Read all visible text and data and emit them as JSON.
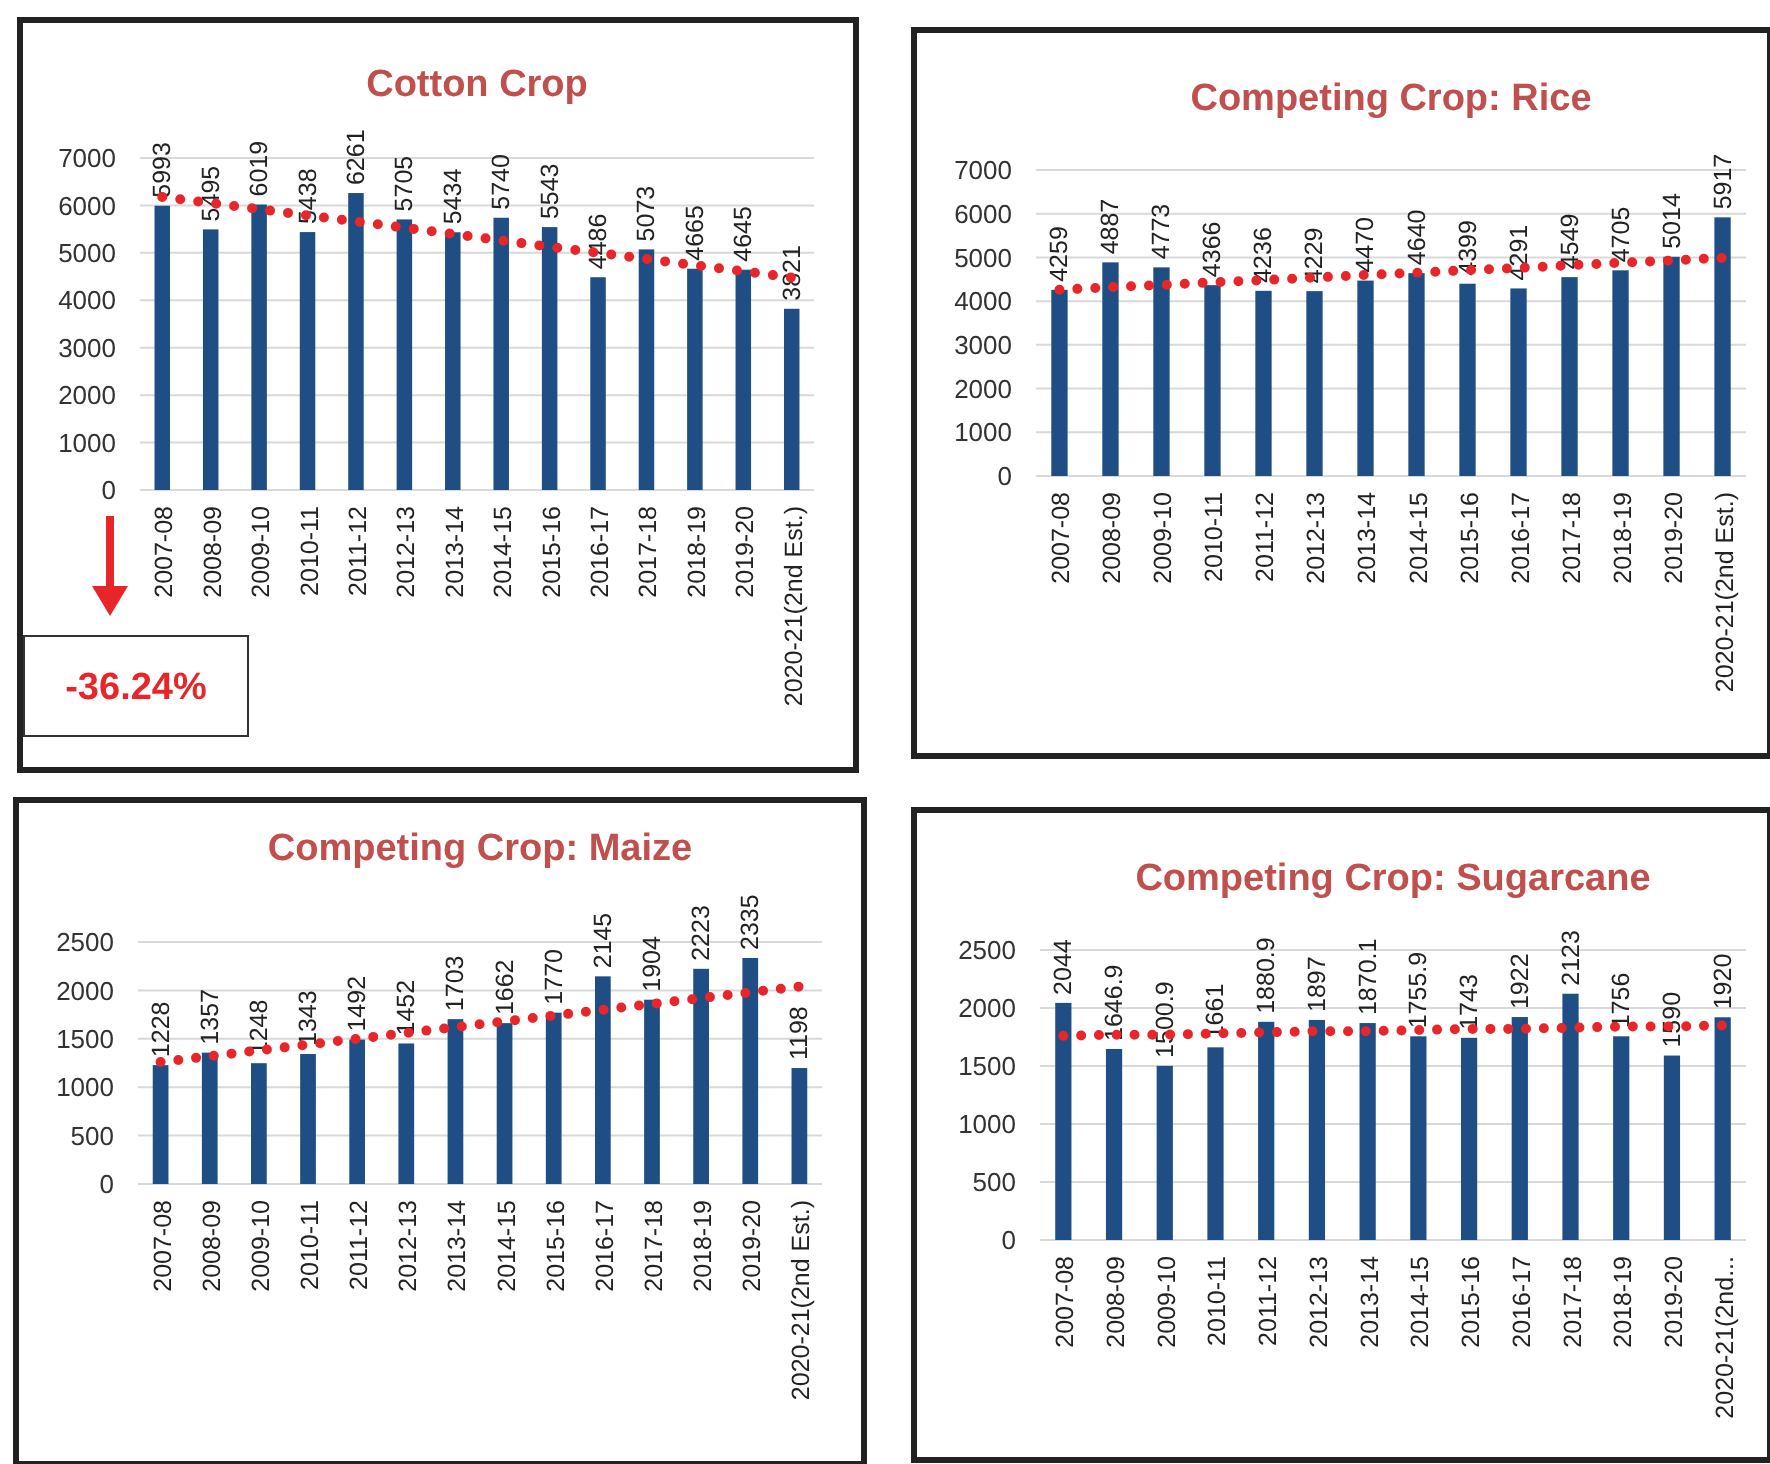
{
  "chart_data": [
    {
      "type": "bar",
      "title": "Cotton Crop",
      "categories": [
        "2007-08",
        "2008-09",
        "2009-10",
        "2010-11",
        "2011-12",
        "2012-13",
        "2013-14",
        "2014-15",
        "2015-16",
        "2016-17",
        "2017-18",
        "2018-19",
        "2019-20",
        "2020-21(2nd Est.)"
      ],
      "series": [
        {
          "color": "#1f4e84",
          "values": [
            5993,
            5495,
            6019,
            5438,
            6261,
            5705,
            5434,
            5740,
            5543,
            4486,
            5073,
            4665,
            4645,
            3821
          ],
          "value_labels": [
            "5993",
            "5495",
            "6019",
            "5438",
            "6261",
            "5705",
            "5434",
            "5740",
            "5543",
            "4486",
            "5073",
            "4665",
            "4645",
            "3821"
          ]
        },
        {
          "type": "line",
          "color": "#e8262a",
          "line_style": "dotted",
          "values": [
            6180,
            6050,
            5920,
            5790,
            5660,
            5530,
            5400,
            5260,
            5130,
            5000,
            4870,
            4740,
            4610,
            4480
          ]
        }
      ],
      "ylim": [
        0,
        7000
      ],
      "yticks": [
        0,
        1000,
        2000,
        3000,
        4000,
        5000,
        6000,
        7000
      ],
      "grid": "y",
      "annotations": [
        "-36.24%"
      ]
    },
    {
      "type": "bar",
      "title": "Competing Crop: Rice",
      "categories": [
        "2007-08",
        "2008-09",
        "2009-10",
        "2010-11",
        "2011-12",
        "2012-13",
        "2013-14",
        "2014-15",
        "2015-16",
        "2016-17",
        "2017-18",
        "2018-19",
        "2019-20",
        "2020-21(2nd Est.)"
      ],
      "series": [
        {
          "color": "#1f4e84",
          "values": [
            4259,
            4887,
            4773,
            4366,
            4236,
            4229,
            4470,
            4640,
            4399,
            4291,
            4549,
            4705,
            5014,
            5917
          ],
          "value_labels": [
            "4259",
            "4887",
            "4773",
            "4366",
            "4236",
            "4229",
            "4470",
            "4640",
            "4399",
            "4291",
            "4549",
            "4705",
            "5014",
            "5917"
          ]
        },
        {
          "type": "line",
          "color": "#e8262a",
          "line_style": "dotted",
          "values": [
            4260,
            4320,
            4370,
            4430,
            4480,
            4540,
            4600,
            4650,
            4710,
            4760,
            4820,
            4880,
            4930,
            4990
          ]
        }
      ],
      "ylim": [
        0,
        7000
      ],
      "yticks": [
        0,
        1000,
        2000,
        3000,
        4000,
        5000,
        6000,
        7000
      ],
      "grid": "y"
    },
    {
      "type": "bar",
      "title": "Competing Crop: Maize",
      "categories": [
        "2007-08",
        "2008-09",
        "2009-10",
        "2010-11",
        "2011-12",
        "2012-13",
        "2013-14",
        "2014-15",
        "2015-16",
        "2016-17",
        "2017-18",
        "2018-19",
        "2019-20",
        "2020-21(2nd Est.)"
      ],
      "series": [
        {
          "color": "#1f4e84",
          "values": [
            1228,
            1357,
            1248,
            1343,
            1492,
            1452,
            1703,
            1662,
            1770,
            2145,
            1904,
            2223,
            2335,
            1198
          ],
          "value_labels": [
            "1228",
            "1357",
            "1248",
            "1343",
            "1492",
            "1452",
            "1703",
            "1662",
            "1770",
            "2145",
            "1904",
            "2223",
            "2335",
            "1198"
          ]
        },
        {
          "type": "line",
          "color": "#e8262a",
          "line_style": "dotted",
          "values": [
            1260,
            1320,
            1380,
            1440,
            1500,
            1560,
            1620,
            1680,
            1740,
            1800,
            1860,
            1920,
            1980,
            2040
          ]
        }
      ],
      "ylim": [
        0,
        2500
      ],
      "yticks": [
        0,
        500,
        1000,
        1500,
        2000,
        2500
      ],
      "grid": "y"
    },
    {
      "type": "bar",
      "title": "Competing Crop: Sugarcane",
      "categories": [
        "2007-08",
        "2008-09",
        "2009-10",
        "2010-11",
        "2011-12",
        "2012-13",
        "2013-14",
        "2014-15",
        "2015-16",
        "2016-17",
        "2017-18",
        "2018-19",
        "2019-20",
        "2020-21(2nd..."
      ],
      "series": [
        {
          "color": "#1f4e84",
          "values": [
            2044,
            1646.9,
            1500.9,
            1661,
            1880.9,
            1897,
            1870.1,
            1755.9,
            1743,
            1922,
            2123,
            1756,
            1590,
            1920
          ],
          "value_labels": [
            "2044",
            "1646.9",
            "1500.9",
            "1661",
            "1880.9",
            "1897",
            "1870.1",
            "1755.9",
            "1743",
            "1922",
            "2123",
            "1756",
            "1590",
            "1920"
          ]
        },
        {
          "type": "line",
          "color": "#e8262a",
          "line_style": "dotted",
          "values": [
            1760,
            1770,
            1770,
            1780,
            1790,
            1800,
            1800,
            1810,
            1820,
            1820,
            1830,
            1840,
            1840,
            1850
          ]
        }
      ],
      "ylim": [
        0,
        2500
      ],
      "yticks": [
        0,
        500,
        1000,
        1500,
        2000,
        2500
      ],
      "grid": "y"
    }
  ]
}
